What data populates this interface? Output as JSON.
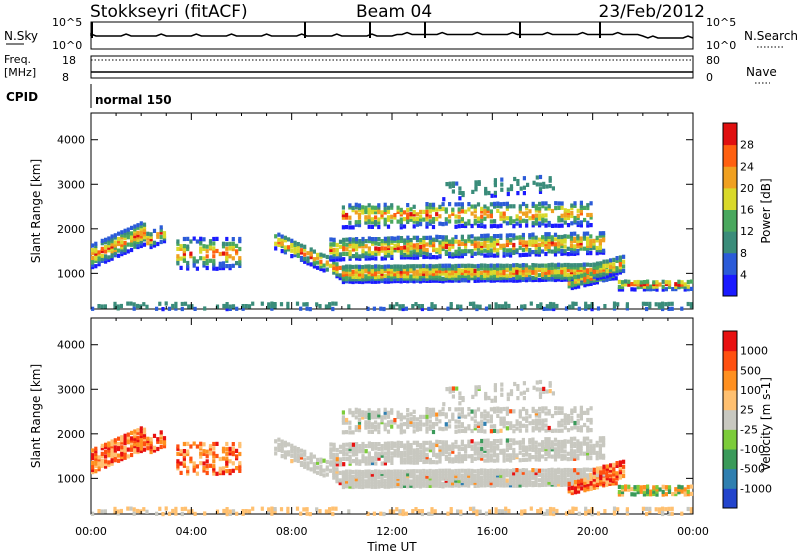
{
  "header": {
    "radar": "Stokkseyri (fitACF)",
    "beam": "Beam 04",
    "date": "23/Feb/2012"
  },
  "status_panels": {
    "nsky_label": "N.Sky",
    "nsearch_label": "N.Search",
    "nsky_ticks": [
      "10^5",
      "10^0"
    ],
    "nsearch_ticks": [
      "10^5",
      "10^0"
    ],
    "freq_label_1": "Freq.",
    "freq_label_2": "[MHz]",
    "freq_ticks": [
      "18",
      "8"
    ],
    "nave_ticks": [
      "80",
      "0"
    ],
    "nave_label": "Nave",
    "cpid_label": "CPID",
    "cpid_value": "normal 150"
  },
  "chart_data": [
    {
      "type": "heatmap",
      "name": "power",
      "ylabel": "Slant Range [km]",
      "yticks": [
        1000,
        2000,
        3000,
        4000
      ],
      "ylim": [
        200,
        4600
      ],
      "xticks": [
        "00:00",
        "04:00",
        "08:00",
        "12:00",
        "16:00",
        "20:00",
        "00:00"
      ],
      "xlim_hours": [
        0,
        24
      ],
      "colorbar": {
        "label": "Power [dB]",
        "ticks": [
          "4",
          "8",
          "12",
          "16",
          "20",
          "24",
          "28"
        ],
        "colors": [
          "#1a1aff",
          "#2b5bd8",
          "#3a8c7a",
          "#4aa85e",
          "#d9d92a",
          "#f0a020",
          "#ff6010",
          "#e01010"
        ]
      }
    },
    {
      "type": "heatmap",
      "name": "velocity",
      "ylabel": "Slant Range [km]",
      "yticks": [
        1000,
        2000,
        3000,
        4000
      ],
      "ylim": [
        200,
        4600
      ],
      "xticks": [
        "00:00",
        "04:00",
        "08:00",
        "12:00",
        "16:00",
        "20:00",
        "00:00"
      ],
      "xlabel": "Time UT",
      "colorbar": {
        "label": "Velocity [m s-1]",
        "ticks": [
          "1000",
          "500",
          "100",
          "25",
          "-25",
          "-100",
          "-500",
          "-1000"
        ],
        "colors": [
          "#2244cc",
          "#2f7fb0",
          "#3a9a5a",
          "#7ccc3a",
          "#c8c8c0",
          "#ffc070",
          "#ff9020",
          "#ff5010",
          "#e81010"
        ]
      }
    }
  ]
}
